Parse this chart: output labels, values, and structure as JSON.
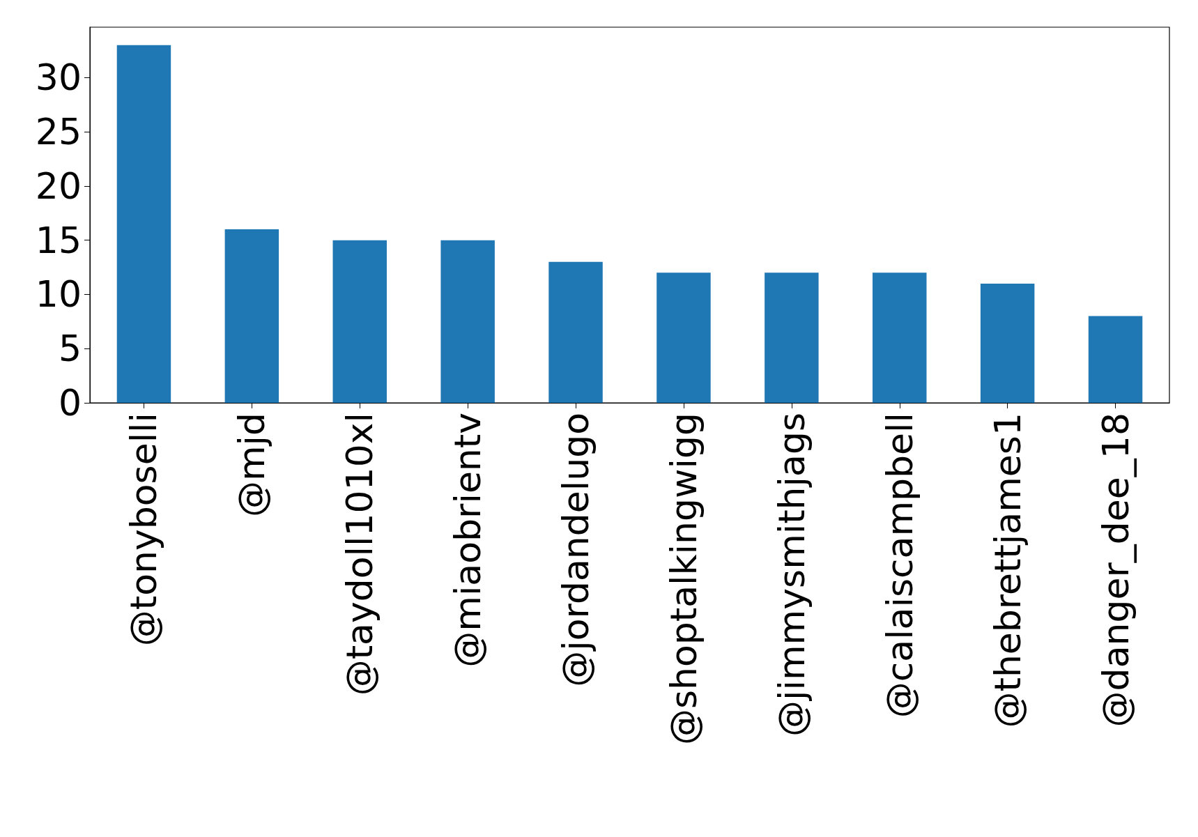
{
  "chart_data": {
    "type": "bar",
    "categories": [
      "@tonyboselli",
      "@mjd",
      "@taydoll1010xl",
      "@miaobrientv",
      "@jordandelugo",
      "@shoptalkingwigg",
      "@jimmysmithjags",
      "@calaiscampbell",
      "@thebrettjames1",
      "@danger_dee_18"
    ],
    "values": [
      33,
      16,
      15,
      15,
      13,
      12,
      12,
      12,
      11,
      8
    ],
    "color": "#1f77b4",
    "ylim": [
      0,
      34.65
    ],
    "yticks": [
      0,
      5,
      10,
      15,
      20,
      25,
      30
    ],
    "grid": false
  }
}
